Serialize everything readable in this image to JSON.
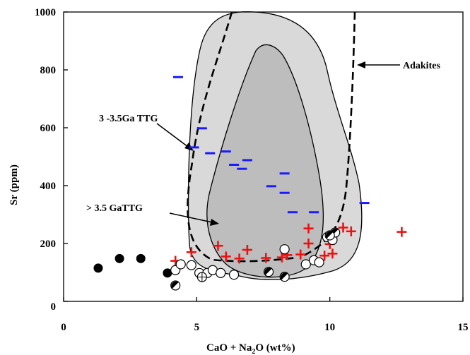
{
  "chart_data": {
    "type": "scatter",
    "xlabel": "CaO + Na",
    "xlabel_sub": "2",
    "xlabel_tail": "O (wt%)",
    "ylabel": "Sr (ppm)",
    "xlim": [
      0,
      15
    ],
    "ylim": [
      0,
      1000
    ],
    "x_ticks": [
      "0",
      "5",
      "10",
      "15"
    ],
    "y_ticks": [
      "0",
      "200",
      "400",
      "600",
      "800",
      "1000"
    ],
    "grid": false,
    "annotations": [
      {
        "id": "adakites",
        "text": "Adakites"
      },
      {
        "id": "ttg-3-3.5",
        "text": "3 -3.5Ga TTG"
      },
      {
        "id": "ttg-gt-3.5",
        "text": "> 3.5  GaTTG"
      }
    ],
    "colors": {
      "outer_field": "#d9d9d9",
      "inner_field": "#bdbdbd",
      "dash_marker": "#1a1aff",
      "plus_marker": "#ee1111",
      "dot_marker": "#000000"
    },
    "series": [
      {
        "marker": "dash",
        "color": "#1a1aff",
        "points": [
          [
            4.3,
            775
          ],
          [
            5.2,
            598
          ],
          [
            4.9,
            532
          ],
          [
            5.5,
            512
          ],
          [
            6.1,
            518
          ],
          [
            6.4,
            472
          ],
          [
            6.7,
            458
          ],
          [
            6.9,
            488
          ],
          [
            7.8,
            398
          ],
          [
            8.3,
            442
          ],
          [
            8.3,
            375
          ],
          [
            8.6,
            308
          ],
          [
            9.4,
            308
          ],
          [
            11.3,
            340
          ]
        ]
      },
      {
        "marker": "plus",
        "color": "#ee1111",
        "points": [
          [
            4.2,
            140
          ],
          [
            4.8,
            170
          ],
          [
            5.8,
            192
          ],
          [
            6.1,
            155
          ],
          [
            6.6,
            148
          ],
          [
            6.9,
            178
          ],
          [
            7.6,
            150
          ],
          [
            8.2,
            152
          ],
          [
            8.4,
            160
          ],
          [
            8.9,
            162
          ],
          [
            9.2,
            252
          ],
          [
            9.2,
            200
          ],
          [
            9.8,
            158
          ],
          [
            10.0,
            198
          ],
          [
            10.1,
            218
          ],
          [
            10.1,
            165
          ],
          [
            10.5,
            255
          ],
          [
            10.8,
            242
          ],
          [
            12.7,
            240
          ]
        ]
      },
      {
        "marker": "filled-circle",
        "color": "#000000",
        "points": [
          [
            1.3,
            115
          ],
          [
            2.1,
            148
          ],
          [
            2.9,
            148
          ],
          [
            3.9,
            98
          ]
        ]
      },
      {
        "marker": "open-circle",
        "color": "#000000",
        "points": [
          [
            4.2,
            108
          ],
          [
            4.4,
            128
          ],
          [
            4.8,
            125
          ],
          [
            5.1,
            98
          ],
          [
            5.4,
            98
          ],
          [
            5.6,
            108
          ],
          [
            5.9,
            98
          ],
          [
            6.4,
            92
          ],
          [
            8.3,
            180
          ],
          [
            9.1,
            128
          ],
          [
            9.4,
            142
          ],
          [
            9.9,
            222
          ],
          [
            10.1,
            212
          ],
          [
            9.6,
            135
          ]
        ]
      },
      {
        "marker": "half-filled-circle",
        "color": "#000000",
        "points": [
          [
            4.2,
            55
          ],
          [
            7.7,
            102
          ],
          [
            8.3,
            85
          ],
          [
            10.2,
            238
          ],
          [
            10.0,
            228
          ]
        ]
      },
      {
        "marker": "crossed-circle",
        "color": "#000000",
        "points": [
          [
            5.2,
            84
          ]
        ]
      }
    ]
  }
}
